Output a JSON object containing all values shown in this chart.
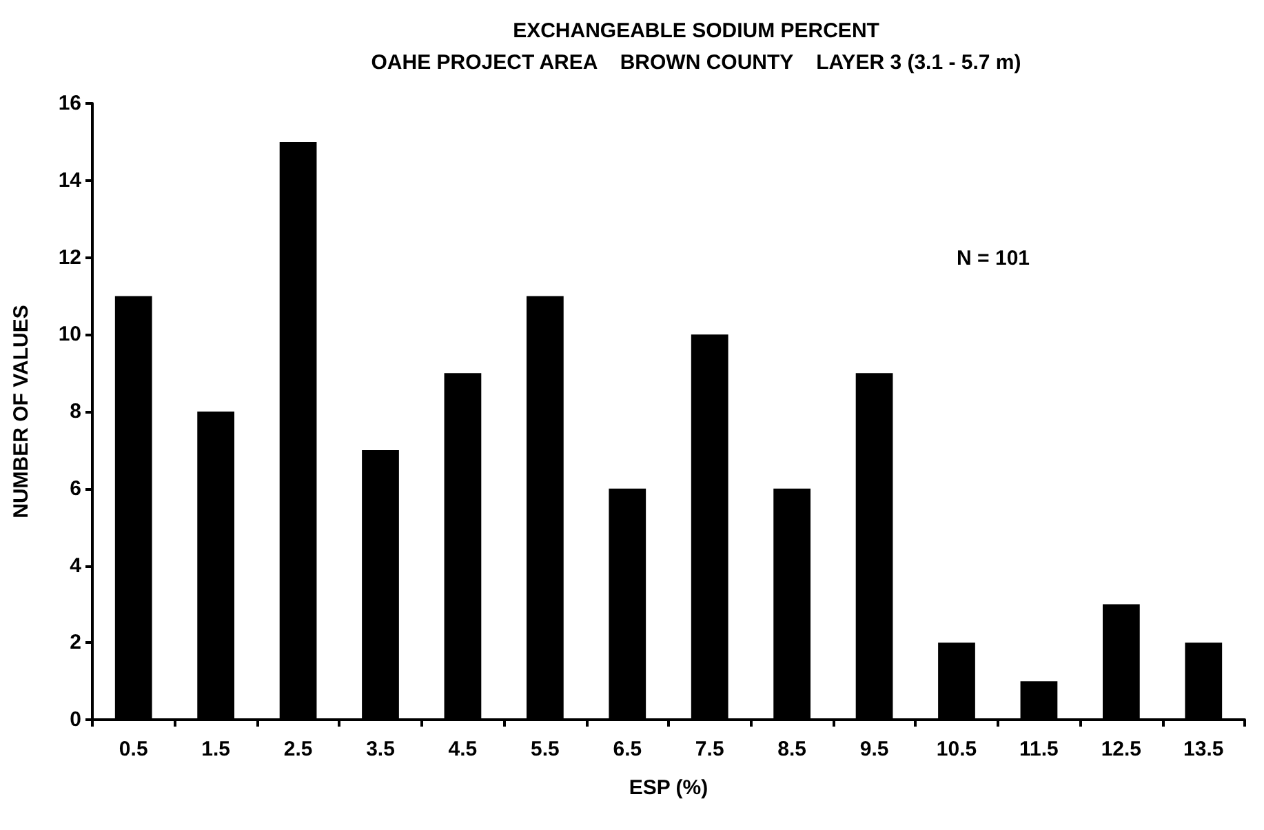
{
  "chart_data": {
    "type": "bar",
    "title": "EXCHANGEABLE SODIUM PERCENT",
    "subtitle": "OAHE PROJECT AREA    BROWN COUNTY    LAYER 3 (3.1 - 5.7 m)",
    "xlabel": "ESP (%)",
    "ylabel": "NUMBER OF VALUES",
    "categories": [
      "0.5",
      "1.5",
      "2.5",
      "3.5",
      "4.5",
      "5.5",
      "6.5",
      "7.5",
      "8.5",
      "9.5",
      "10.5",
      "11.5",
      "12.5",
      "13.5"
    ],
    "values": [
      11,
      8,
      15,
      7,
      9,
      11,
      6,
      10,
      6,
      9,
      2,
      1,
      3,
      2
    ],
    "color": "#000000",
    "ylim": [
      0,
      16
    ],
    "yticks": [
      0,
      2,
      4,
      6,
      8,
      10,
      12,
      14,
      16
    ],
    "grid": false,
    "annotations": [
      "N = 101"
    ]
  }
}
